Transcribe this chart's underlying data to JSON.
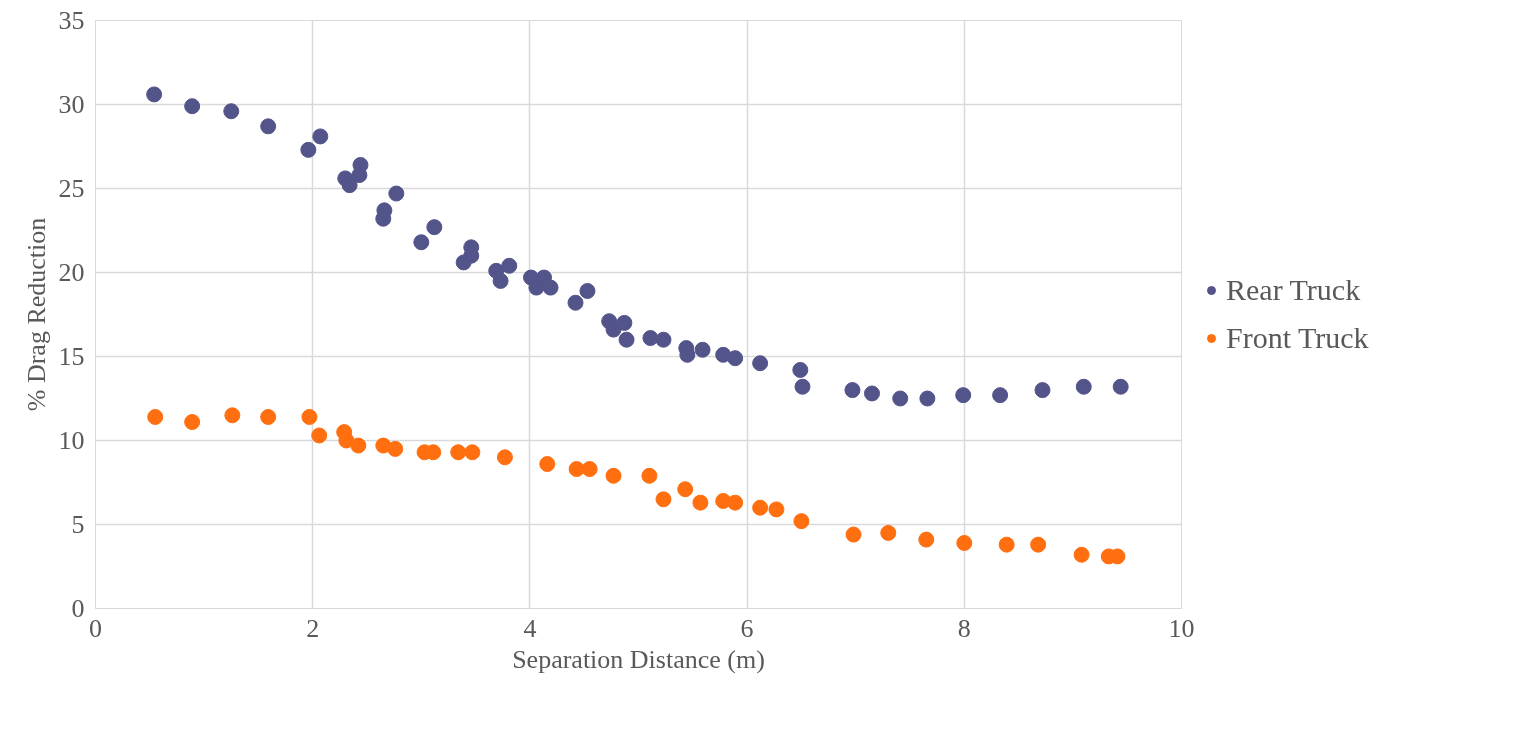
{
  "chart_data": {
    "type": "scatter",
    "xlabel": "Separation Distance (m)",
    "ylabel": "% Drag Reduction",
    "xlim": [
      0,
      10
    ],
    "xticks": [
      0,
      2,
      4,
      6,
      8,
      10
    ],
    "ylim": [
      0,
      35
    ],
    "yticks": [
      0,
      5,
      10,
      15,
      20,
      25,
      30,
      35
    ],
    "grid": true,
    "legend": "right",
    "marker": "circle",
    "series": [
      {
        "name": "Rear Truck",
        "color": "#53548a",
        "x": [
          0.54,
          0.89,
          1.25,
          1.59,
          1.96,
          2.07,
          2.3,
          2.34,
          2.43,
          2.44,
          2.65,
          2.66,
          2.77,
          3.0,
          3.12,
          3.39,
          3.46,
          3.46,
          3.69,
          3.73,
          3.81,
          4.01,
          4.06,
          4.13,
          4.19,
          4.42,
          4.53,
          4.73,
          4.77,
          4.87,
          4.89,
          5.11,
          5.23,
          5.44,
          5.45,
          5.59,
          5.78,
          5.89,
          6.12,
          6.49,
          6.51,
          6.97,
          7.15,
          7.41,
          7.66,
          7.99,
          8.33,
          8.72,
          9.1,
          9.44
        ],
        "values": [
          30.6,
          29.9,
          29.6,
          28.7,
          27.3,
          28.1,
          25.6,
          25.2,
          25.8,
          26.4,
          23.2,
          23.7,
          24.7,
          21.8,
          22.7,
          20.6,
          21.0,
          21.5,
          20.1,
          19.5,
          20.4,
          19.7,
          19.1,
          19.7,
          19.1,
          18.2,
          18.9,
          17.1,
          16.6,
          17.0,
          16.0,
          16.1,
          16.0,
          15.5,
          15.1,
          15.4,
          15.1,
          14.9,
          14.6,
          14.2,
          13.2,
          13.0,
          12.8,
          12.5,
          12.5,
          12.7,
          12.7,
          13.0,
          13.2,
          13.2
        ]
      },
      {
        "name": "Front Truck",
        "color": "#ff6f10",
        "x": [
          0.55,
          0.89,
          1.26,
          1.59,
          1.97,
          2.06,
          2.29,
          2.31,
          2.42,
          2.65,
          2.76,
          3.03,
          3.11,
          3.34,
          3.47,
          3.77,
          4.16,
          4.43,
          4.55,
          4.77,
          5.1,
          5.23,
          5.43,
          5.57,
          5.78,
          5.89,
          6.12,
          6.27,
          6.5,
          6.98,
          7.3,
          7.65,
          8.0,
          8.39,
          8.68,
          9.08,
          9.33,
          9.41
        ],
        "values": [
          11.4,
          11.1,
          11.5,
          11.4,
          11.4,
          10.3,
          10.5,
          10.0,
          9.7,
          9.7,
          9.5,
          9.3,
          9.3,
          9.3,
          9.3,
          9.0,
          8.6,
          8.3,
          8.3,
          7.9,
          7.9,
          6.5,
          7.1,
          6.3,
          6.4,
          6.3,
          6.0,
          5.9,
          5.2,
          4.4,
          4.5,
          4.1,
          3.9,
          3.8,
          3.8,
          3.2,
          3.1,
          3.1
        ]
      }
    ]
  }
}
